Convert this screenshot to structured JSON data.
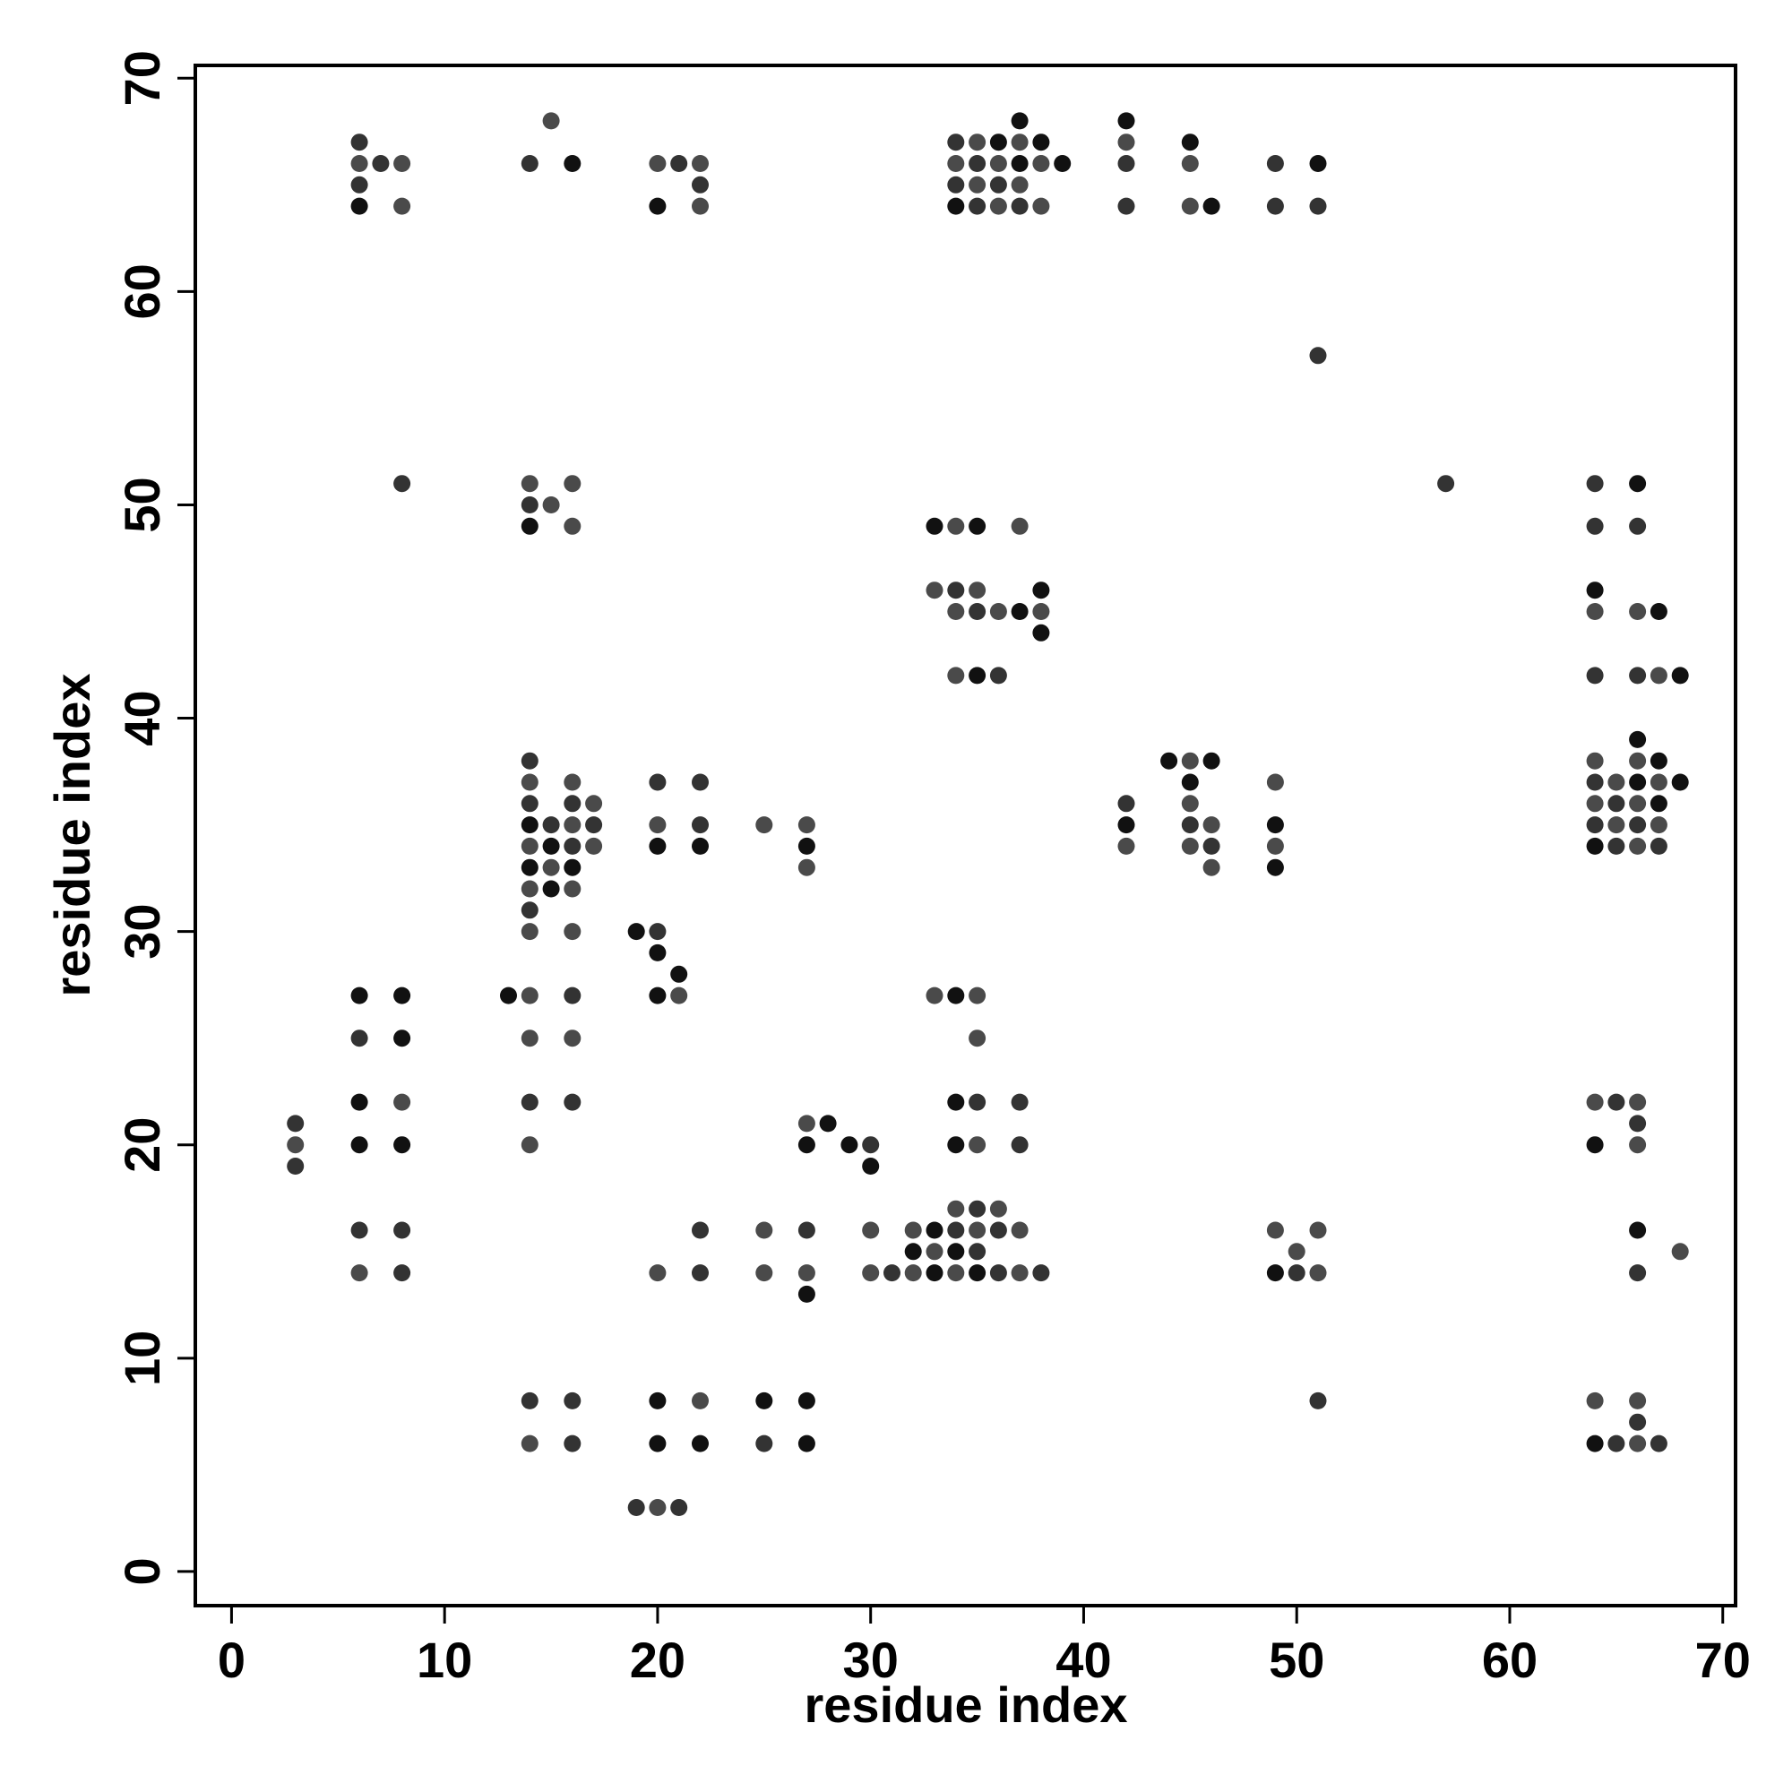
{
  "chart_data": {
    "type": "scatter",
    "title": "",
    "xlabel": "residue index",
    "ylabel": "residue index",
    "xlim": [
      -1.7,
      70.6
    ],
    "ylim": [
      -1.6,
      70.6
    ],
    "xticks": [
      0,
      10,
      20,
      30,
      40,
      50,
      60,
      70
    ],
    "yticks": [
      0,
      10,
      20,
      30,
      40,
      50,
      60,
      70
    ],
    "grid": false,
    "legend": "none",
    "marker_color_range": [
      "#111111",
      "#555555"
    ],
    "points": [
      [
        6,
        67
      ],
      [
        6,
        66
      ],
      [
        6,
        65
      ],
      [
        6,
        64
      ],
      [
        7,
        66
      ],
      [
        8,
        66
      ],
      [
        8,
        64
      ],
      [
        14,
        66
      ],
      [
        15,
        68
      ],
      [
        16,
        66
      ],
      [
        20,
        66
      ],
      [
        20,
        64
      ],
      [
        21,
        66
      ],
      [
        22,
        66
      ],
      [
        22,
        65
      ],
      [
        22,
        64
      ],
      [
        34,
        67
      ],
      [
        34,
        66
      ],
      [
        34,
        65
      ],
      [
        34,
        64
      ],
      [
        35,
        67
      ],
      [
        35,
        66
      ],
      [
        35,
        65
      ],
      [
        35,
        64
      ],
      [
        36,
        67
      ],
      [
        36,
        66
      ],
      [
        36,
        65
      ],
      [
        36,
        64
      ],
      [
        37,
        68
      ],
      [
        37,
        67
      ],
      [
        37,
        66
      ],
      [
        37,
        65
      ],
      [
        37,
        64
      ],
      [
        38,
        67
      ],
      [
        38,
        66
      ],
      [
        38,
        64
      ],
      [
        39,
        66
      ],
      [
        42,
        68
      ],
      [
        42,
        67
      ],
      [
        42,
        66
      ],
      [
        42,
        64
      ],
      [
        45,
        67
      ],
      [
        45,
        66
      ],
      [
        45,
        64
      ],
      [
        46,
        64
      ],
      [
        49,
        66
      ],
      [
        49,
        64
      ],
      [
        51,
        66
      ],
      [
        51,
        64
      ],
      [
        51,
        57
      ],
      [
        8,
        51
      ],
      [
        14,
        51
      ],
      [
        14,
        50
      ],
      [
        14,
        49
      ],
      [
        15,
        50
      ],
      [
        16,
        51
      ],
      [
        16,
        49
      ],
      [
        57,
        51
      ],
      [
        64,
        51
      ],
      [
        64,
        49
      ],
      [
        66,
        51
      ],
      [
        66,
        49
      ],
      [
        33,
        49
      ],
      [
        34,
        49
      ],
      [
        35,
        49
      ],
      [
        37,
        49
      ],
      [
        33,
        46
      ],
      [
        34,
        46
      ],
      [
        34,
        45
      ],
      [
        35,
        46
      ],
      [
        35,
        45
      ],
      [
        36,
        45
      ],
      [
        37,
        45
      ],
      [
        38,
        46
      ],
      [
        38,
        45
      ],
      [
        38,
        44
      ],
      [
        34,
        42
      ],
      [
        35,
        42
      ],
      [
        36,
        42
      ],
      [
        64,
        46
      ],
      [
        64,
        45
      ],
      [
        66,
        45
      ],
      [
        67,
        45
      ],
      [
        64,
        42
      ],
      [
        66,
        42
      ],
      [
        67,
        42
      ],
      [
        68,
        42
      ],
      [
        14,
        38
      ],
      [
        14,
        37
      ],
      [
        14,
        36
      ],
      [
        14,
        35
      ],
      [
        14,
        34
      ],
      [
        14,
        33
      ],
      [
        14,
        32
      ],
      [
        14,
        31
      ],
      [
        14,
        30
      ],
      [
        15,
        35
      ],
      [
        15,
        34
      ],
      [
        15,
        33
      ],
      [
        15,
        32
      ],
      [
        16,
        37
      ],
      [
        16,
        36
      ],
      [
        16,
        35
      ],
      [
        16,
        34
      ],
      [
        16,
        33
      ],
      [
        16,
        32
      ],
      [
        16,
        30
      ],
      [
        17,
        36
      ],
      [
        17,
        35
      ],
      [
        17,
        34
      ],
      [
        20,
        37
      ],
      [
        20,
        35
      ],
      [
        20,
        34
      ],
      [
        22,
        37
      ],
      [
        22,
        35
      ],
      [
        22,
        34
      ],
      [
        25,
        35
      ],
      [
        27,
        35
      ],
      [
        27,
        34
      ],
      [
        27,
        33
      ],
      [
        42,
        36
      ],
      [
        42,
        35
      ],
      [
        42,
        34
      ],
      [
        44,
        38
      ],
      [
        45,
        38
      ],
      [
        45,
        37
      ],
      [
        45,
        36
      ],
      [
        45,
        35
      ],
      [
        45,
        34
      ],
      [
        46,
        38
      ],
      [
        46,
        35
      ],
      [
        46,
        34
      ],
      [
        46,
        33
      ],
      [
        49,
        37
      ],
      [
        49,
        35
      ],
      [
        49,
        34
      ],
      [
        49,
        33
      ],
      [
        64,
        38
      ],
      [
        64,
        37
      ],
      [
        64,
        36
      ],
      [
        64,
        35
      ],
      [
        64,
        34
      ],
      [
        65,
        37
      ],
      [
        65,
        36
      ],
      [
        65,
        35
      ],
      [
        65,
        34
      ],
      [
        66,
        39
      ],
      [
        66,
        38
      ],
      [
        66,
        37
      ],
      [
        66,
        36
      ],
      [
        66,
        35
      ],
      [
        66,
        34
      ],
      [
        67,
        38
      ],
      [
        67,
        37
      ],
      [
        67,
        36
      ],
      [
        67,
        35
      ],
      [
        67,
        34
      ],
      [
        68,
        37
      ],
      [
        19,
        30
      ],
      [
        20,
        30
      ],
      [
        20,
        29
      ],
      [
        21,
        28
      ],
      [
        20,
        27
      ],
      [
        21,
        27
      ],
      [
        6,
        27
      ],
      [
        8,
        27
      ],
      [
        13,
        27
      ],
      [
        14,
        27
      ],
      [
        16,
        27
      ],
      [
        33,
        27
      ],
      [
        34,
        27
      ],
      [
        35,
        27
      ],
      [
        6,
        25
      ],
      [
        8,
        25
      ],
      [
        14,
        25
      ],
      [
        16,
        25
      ],
      [
        35,
        25
      ],
      [
        6,
        22
      ],
      [
        8,
        22
      ],
      [
        14,
        22
      ],
      [
        16,
        22
      ],
      [
        34,
        22
      ],
      [
        35,
        22
      ],
      [
        37,
        22
      ],
      [
        64,
        22
      ],
      [
        65,
        22
      ],
      [
        66,
        22
      ],
      [
        66,
        21
      ],
      [
        3,
        21
      ],
      [
        3,
        20
      ],
      [
        3,
        19
      ],
      [
        6,
        20
      ],
      [
        8,
        20
      ],
      [
        14,
        20
      ],
      [
        27,
        21
      ],
      [
        27,
        20
      ],
      [
        28,
        21
      ],
      [
        29,
        20
      ],
      [
        30,
        20
      ],
      [
        30,
        19
      ],
      [
        34,
        20
      ],
      [
        35,
        20
      ],
      [
        37,
        20
      ],
      [
        64,
        20
      ],
      [
        66,
        20
      ],
      [
        6,
        16
      ],
      [
        8,
        16
      ],
      [
        22,
        16
      ],
      [
        25,
        16
      ],
      [
        27,
        16
      ],
      [
        30,
        16
      ],
      [
        32,
        16
      ],
      [
        32,
        15
      ],
      [
        33,
        16
      ],
      [
        33,
        15
      ],
      [
        34,
        17
      ],
      [
        34,
        16
      ],
      [
        34,
        15
      ],
      [
        35,
        17
      ],
      [
        35,
        16
      ],
      [
        35,
        15
      ],
      [
        36,
        17
      ],
      [
        36,
        16
      ],
      [
        37,
        16
      ],
      [
        49,
        16
      ],
      [
        50,
        15
      ],
      [
        51,
        16
      ],
      [
        66,
        16
      ],
      [
        68,
        15
      ],
      [
        6,
        14
      ],
      [
        8,
        14
      ],
      [
        20,
        14
      ],
      [
        22,
        14
      ],
      [
        25,
        14
      ],
      [
        27,
        14
      ],
      [
        27,
        13
      ],
      [
        30,
        14
      ],
      [
        31,
        14
      ],
      [
        32,
        14
      ],
      [
        33,
        14
      ],
      [
        34,
        14
      ],
      [
        35,
        14
      ],
      [
        36,
        14
      ],
      [
        37,
        14
      ],
      [
        38,
        14
      ],
      [
        49,
        14
      ],
      [
        50,
        14
      ],
      [
        51,
        14
      ],
      [
        66,
        14
      ],
      [
        14,
        8
      ],
      [
        16,
        8
      ],
      [
        20,
        8
      ],
      [
        22,
        8
      ],
      [
        25,
        8
      ],
      [
        27,
        8
      ],
      [
        51,
        8
      ],
      [
        64,
        8
      ],
      [
        66,
        8
      ],
      [
        66,
        7
      ],
      [
        14,
        6
      ],
      [
        16,
        6
      ],
      [
        20,
        6
      ],
      [
        22,
        6
      ],
      [
        25,
        6
      ],
      [
        27,
        6
      ],
      [
        64,
        6
      ],
      [
        65,
        6
      ],
      [
        66,
        6
      ],
      [
        67,
        6
      ],
      [
        19,
        3
      ],
      [
        20,
        3
      ],
      [
        21,
        3
      ]
    ]
  }
}
